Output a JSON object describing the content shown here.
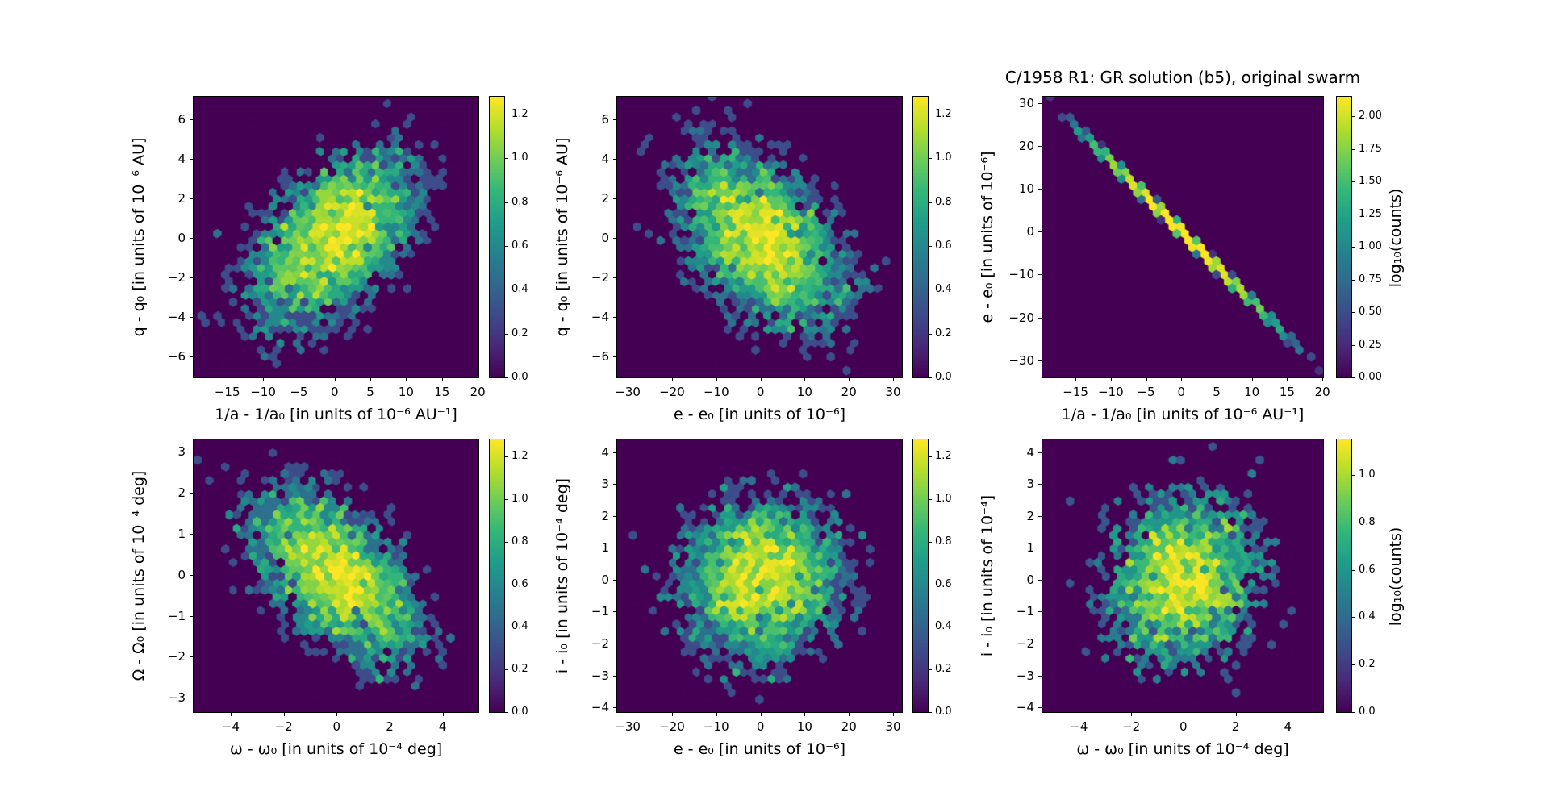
{
  "figure": {
    "title": "C/1958 R1: GR solution (b5), original swarm",
    "background_color": "#ffffff",
    "colormap": "viridis",
    "zero_count_color": "#440154",
    "text_color": "#000000"
  },
  "chart_data": [
    {
      "name": "q-vs-1a",
      "type": "hexbin",
      "title": "",
      "xlabel": "1/a - 1/a₀ [in units of 10⁻⁶ AU⁻¹]",
      "ylabel": "q - q₀ [in units of 10⁻⁶ AU]",
      "xlim": [
        -19.7,
        20.1
      ],
      "ylim": [
        -7.05,
        7.15
      ],
      "xticks": [
        [
          -15,
          "−15"
        ],
        [
          -10,
          "−10"
        ],
        [
          -5,
          "−5"
        ],
        [
          0,
          "0"
        ],
        [
          5,
          "5"
        ],
        [
          10,
          "10"
        ],
        [
          15,
          "15"
        ],
        [
          20,
          "20"
        ]
      ],
      "yticks": [
        [
          -6,
          "−6"
        ],
        [
          -4,
          "−4"
        ],
        [
          -2,
          "−2"
        ],
        [
          0,
          "0"
        ],
        [
          2,
          "2"
        ],
        [
          4,
          "4"
        ],
        [
          6,
          "6"
        ]
      ],
      "colorbar": {
        "vmax": 1.28,
        "label": "",
        "ticks": [
          [
            0,
            "0.0"
          ],
          [
            0.2,
            "0.2"
          ],
          [
            0.4,
            "0.4"
          ],
          [
            0.6,
            "0.6"
          ],
          [
            0.8,
            "0.8"
          ],
          [
            1.0,
            "1.0"
          ],
          [
            1.2,
            "1.2"
          ]
        ]
      },
      "distribution": {
        "kind": "gaussian",
        "n": 3600,
        "center": [
          0,
          0
        ],
        "sigma_x": 6.2,
        "sigma_y": 2.37,
        "rho": 0.5
      },
      "seed": 101
    },
    {
      "name": "q-vs-e",
      "type": "hexbin",
      "title": "",
      "xlabel": "e - e₀ [in units of 10⁻⁶]",
      "ylabel": "q - q₀ [in units of 10⁻⁶ AU]",
      "xlim": [
        -32.4,
        32.0
      ],
      "ylim": [
        -7.05,
        7.15
      ],
      "xticks": [
        [
          -30,
          "−30"
        ],
        [
          -20,
          "−20"
        ],
        [
          -10,
          "−10"
        ],
        [
          0,
          "0"
        ],
        [
          10,
          "10"
        ],
        [
          20,
          "20"
        ],
        [
          30,
          "30"
        ]
      ],
      "yticks": [
        [
          -6,
          "−6"
        ],
        [
          -4,
          "−4"
        ],
        [
          -2,
          "−2"
        ],
        [
          0,
          "0"
        ],
        [
          2,
          "2"
        ],
        [
          4,
          "4"
        ],
        [
          6,
          "6"
        ]
      ],
      "colorbar": {
        "vmax": 1.28,
        "label": "",
        "ticks": [
          [
            0,
            "0.0"
          ],
          [
            0.2,
            "0.2"
          ],
          [
            0.4,
            "0.4"
          ],
          [
            0.6,
            "0.6"
          ],
          [
            0.8,
            "0.8"
          ],
          [
            1.0,
            "1.0"
          ],
          [
            1.2,
            "1.2"
          ]
        ]
      },
      "distribution": {
        "kind": "gaussian",
        "n": 3700,
        "center": [
          0,
          0
        ],
        "sigma_x": 10.0,
        "sigma_y": 2.37,
        "rho": -0.45
      },
      "seed": 202
    },
    {
      "name": "e-vs-1a",
      "type": "hexbin",
      "title": "C/1958 R1: GR solution (b5), original swarm",
      "xlabel": "1/a - 1/a₀ [in units of 10⁻⁶ AU⁻¹]",
      "ylabel": "e - e₀ [in units of 10⁻⁶]",
      "xlim": [
        -19.7,
        20.1
      ],
      "ylim": [
        -34.0,
        31.5
      ],
      "xticks": [
        [
          -15,
          "−15"
        ],
        [
          -10,
          "−10"
        ],
        [
          -5,
          "−5"
        ],
        [
          0,
          "0"
        ],
        [
          5,
          "5"
        ],
        [
          10,
          "10"
        ],
        [
          15,
          "15"
        ],
        [
          20,
          "20"
        ]
      ],
      "yticks": [
        [
          -30,
          "−30"
        ],
        [
          -20,
          "−20"
        ],
        [
          -10,
          "−10"
        ],
        [
          0,
          "0"
        ],
        [
          10,
          "10"
        ],
        [
          20,
          "20"
        ],
        [
          30,
          "30"
        ]
      ],
      "colorbar": {
        "vmax": 2.15,
        "label": "log₁₀(counts)",
        "ticks": [
          [
            0,
            "0.00"
          ],
          [
            0.25,
            "0.25"
          ],
          [
            0.5,
            "0.50"
          ],
          [
            0.75,
            "0.75"
          ],
          [
            1.0,
            "1.00"
          ],
          [
            1.25,
            "1.25"
          ],
          [
            1.5,
            "1.50"
          ],
          [
            1.75,
            "1.75"
          ],
          [
            2.0,
            "2.00"
          ]
        ]
      },
      "distribution": {
        "kind": "line",
        "n": 4000,
        "slope": -1.64,
        "sigma_x": 6.0,
        "jitter_y": 0.3
      },
      "seed": 303
    },
    {
      "name": "Omega-vs-omega",
      "type": "hexbin",
      "title": "",
      "xlabel": "ω - ω₀ [in units of 10⁻⁴ deg]",
      "ylabel": "Ω - Ω₀ [in units of 10⁻⁴ deg]",
      "xlim": [
        -5.4,
        5.35
      ],
      "ylim": [
        -3.35,
        3.3
      ],
      "xticks": [
        [
          -4,
          "−4"
        ],
        [
          -2,
          "−2"
        ],
        [
          0,
          "0"
        ],
        [
          2,
          "2"
        ],
        [
          4,
          "4"
        ]
      ],
      "yticks": [
        [
          -3,
          "−3"
        ],
        [
          -2,
          "−2"
        ],
        [
          -1,
          "−1"
        ],
        [
          0,
          "0"
        ],
        [
          1,
          "1"
        ],
        [
          2,
          "2"
        ],
        [
          3,
          "3"
        ]
      ],
      "colorbar": {
        "vmax": 1.28,
        "label": "",
        "ticks": [
          [
            0,
            "0.0"
          ],
          [
            0.2,
            "0.2"
          ],
          [
            0.4,
            "0.4"
          ],
          [
            0.6,
            "0.6"
          ],
          [
            0.8,
            "0.8"
          ],
          [
            1.0,
            "1.0"
          ],
          [
            1.2,
            "1.2"
          ]
        ]
      },
      "distribution": {
        "kind": "gaussian",
        "n": 3500,
        "center": [
          0,
          0
        ],
        "sigma_x": 1.72,
        "sigma_y": 1.14,
        "rho": -0.55
      },
      "seed": 404
    },
    {
      "name": "i-vs-e",
      "type": "hexbin",
      "title": "",
      "xlabel": "e - e₀ [in units of 10⁻⁶]",
      "ylabel": "i - i₀ [in units of 10⁻⁴ deg]",
      "xlim": [
        -32.4,
        32.0
      ],
      "ylim": [
        -4.15,
        4.4
      ],
      "xticks": [
        [
          -30,
          "−30"
        ],
        [
          -20,
          "−20"
        ],
        [
          -10,
          "−10"
        ],
        [
          0,
          "0"
        ],
        [
          10,
          "10"
        ],
        [
          20,
          "20"
        ],
        [
          30,
          "30"
        ]
      ],
      "yticks": [
        [
          -4,
          "−4"
        ],
        [
          -3,
          "−3"
        ],
        [
          -2,
          "−2"
        ],
        [
          -1,
          "−1"
        ],
        [
          0,
          "0"
        ],
        [
          1,
          "1"
        ],
        [
          2,
          "2"
        ],
        [
          3,
          "3"
        ],
        [
          4,
          "4"
        ]
      ],
      "colorbar": {
        "vmax": 1.28,
        "label": "",
        "ticks": [
          [
            0,
            "0.0"
          ],
          [
            0.2,
            "0.2"
          ],
          [
            0.4,
            "0.4"
          ],
          [
            0.6,
            "0.6"
          ],
          [
            0.8,
            "0.8"
          ],
          [
            1.0,
            "1.0"
          ],
          [
            1.2,
            "1.2"
          ]
        ]
      },
      "distribution": {
        "kind": "gaussian",
        "n": 3600,
        "center": [
          0,
          0
        ],
        "sigma_x": 9.7,
        "sigma_y": 1.34,
        "rho": 0.05
      },
      "seed": 505
    },
    {
      "name": "i-vs-omega",
      "type": "hexbin",
      "title": "",
      "xlabel": "ω - ω₀ [in units of 10⁻⁴ deg]",
      "ylabel": "i - i₀ [in units of 10⁻⁴]",
      "xlim": [
        -5.4,
        5.35
      ],
      "ylim": [
        -4.15,
        4.4
      ],
      "xticks": [
        [
          -4,
          "−4"
        ],
        [
          -2,
          "−2"
        ],
        [
          0,
          "0"
        ],
        [
          2,
          "2"
        ],
        [
          4,
          "4"
        ]
      ],
      "yticks": [
        [
          -4,
          "−4"
        ],
        [
          -3,
          "−3"
        ],
        [
          -2,
          "−2"
        ],
        [
          -1,
          "−1"
        ],
        [
          0,
          "0"
        ],
        [
          1,
          "1"
        ],
        [
          2,
          "2"
        ],
        [
          3,
          "3"
        ],
        [
          4,
          "4"
        ]
      ],
      "colorbar": {
        "vmax": 1.15,
        "label": "log₁₀(counts)",
        "ticks": [
          [
            0,
            "0.0"
          ],
          [
            0.2,
            "0.2"
          ],
          [
            0.4,
            "0.4"
          ],
          [
            0.6,
            "0.6"
          ],
          [
            0.8,
            "0.8"
          ],
          [
            1.0,
            "1.0"
          ]
        ]
      },
      "distribution": {
        "kind": "gaussian",
        "n": 2800,
        "center": [
          0,
          0
        ],
        "sigma_x": 1.57,
        "sigma_y": 1.44,
        "rho": 0.05
      },
      "seed": 606
    }
  ]
}
